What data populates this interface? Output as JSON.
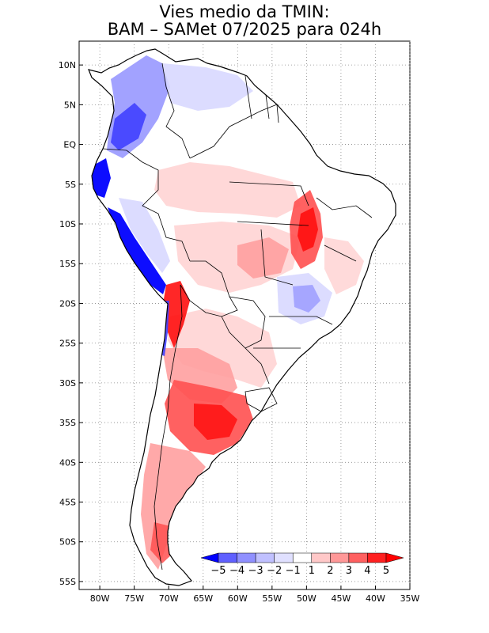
{
  "title_line1": "Vies medio da TMIN:",
  "title_line2": "BAM – SAMet 07/2025  para 024h",
  "map": {
    "region": "South America",
    "lon_range": [
      -83,
      -35
    ],
    "lat_range": [
      -56,
      13
    ],
    "lon_ticks": [
      {
        "v": -80,
        "label": "80W"
      },
      {
        "v": -75,
        "label": "75W"
      },
      {
        "v": -70,
        "label": "70W"
      },
      {
        "v": -65,
        "label": "65W"
      },
      {
        "v": -60,
        "label": "60W"
      },
      {
        "v": -55,
        "label": "55W"
      },
      {
        "v": -50,
        "label": "50W"
      },
      {
        "v": -45,
        "label": "45W"
      },
      {
        "v": -40,
        "label": "40W"
      },
      {
        "v": -35,
        "label": "35W"
      }
    ],
    "lat_ticks": [
      {
        "v": 10,
        "label": "10N"
      },
      {
        "v": 5,
        "label": "5N"
      },
      {
        "v": 0,
        "label": "EQ"
      },
      {
        "v": -5,
        "label": "5S"
      },
      {
        "v": -10,
        "label": "10S"
      },
      {
        "v": -15,
        "label": "15S"
      },
      {
        "v": -20,
        "label": "20S"
      },
      {
        "v": -25,
        "label": "25S"
      },
      {
        "v": -30,
        "label": "30S"
      },
      {
        "v": -35,
        "label": "35S"
      },
      {
        "v": -40,
        "label": "40S"
      },
      {
        "v": -45,
        "label": "45S"
      },
      {
        "v": -50,
        "label": "50S"
      },
      {
        "v": -55,
        "label": "55S"
      }
    ],
    "grid": "dotted"
  },
  "colorbar": {
    "labels": [
      "−5",
      "−4",
      "−3",
      "−2",
      "−1",
      "1",
      "2",
      "3",
      "4",
      "5"
    ],
    "colors": [
      "#0000ff",
      "#6060ff",
      "#9090ff",
      "#c0c0ff",
      "#e0e0ff",
      "#ffffff",
      "#ffc8c8",
      "#ff9898",
      "#ff6060",
      "#ff2020",
      "#ff0000"
    ],
    "under_color": "#0000ff",
    "over_color": "#ff0000"
  },
  "colors": {
    "land_neutral": "#ffffff",
    "warm_light": "#ffd4d4",
    "warm_mid": "#ffa0a0",
    "warm_strong": "#ff5050",
    "warm_max": "#ff1010",
    "cool_light": "#d8d8ff",
    "cool_mid": "#9898ff",
    "cool_strong": "#4040ff",
    "cool_max": "#0000ff",
    "border": "#000000"
  }
}
